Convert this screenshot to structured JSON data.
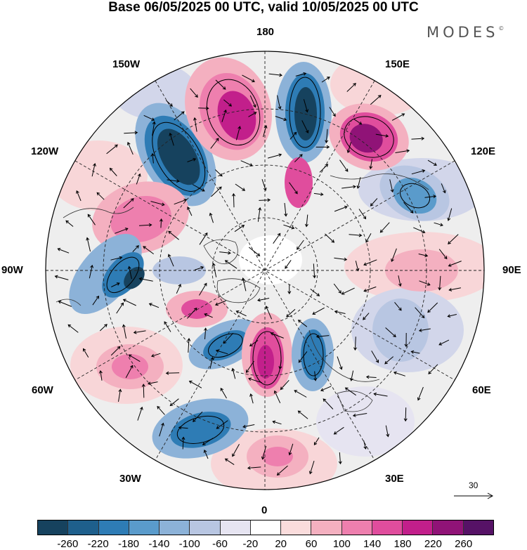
{
  "title": "Base 06/05/2025 00 UTC, valid 10/05/2025 00 UTC",
  "logo": "MODES",
  "logo_mark": "©",
  "lon_labels": [
    "180",
    "150E",
    "120E",
    "90E",
    "60E",
    "30E",
    "0",
    "30W",
    "60W",
    "90W",
    "120W",
    "150W"
  ],
  "reference_vector": "30",
  "colorbar": {
    "ticks": [
      "-260",
      "-220",
      "-180",
      "-140",
      "-100",
      "-60",
      "-20",
      "20",
      "60",
      "100",
      "140",
      "180",
      "220",
      "260"
    ],
    "colors": [
      "#16425e",
      "#1e5f8c",
      "#2e7cb5",
      "#5a9bcb",
      "#8cb2d8",
      "#b8c6e2",
      "#e6e4f1",
      "#ffffff",
      "#fadcdc",
      "#f4b0c0",
      "#ee7fae",
      "#e04d9d",
      "#c21f8b",
      "#901377",
      "#561266"
    ]
  },
  "map_colors": {
    "neg_strong": "#16425e",
    "neg_mid": "#2e7cb5",
    "neg_light": "#8cb2d8",
    "neg_faint": "#d2d6ea",
    "pos_faint": "#f8d6d8",
    "pos_light": "#f4b0c0",
    "pos_mid": "#e04d9d",
    "pos_strong": "#901377",
    "land_bg": "#ececec"
  }
}
